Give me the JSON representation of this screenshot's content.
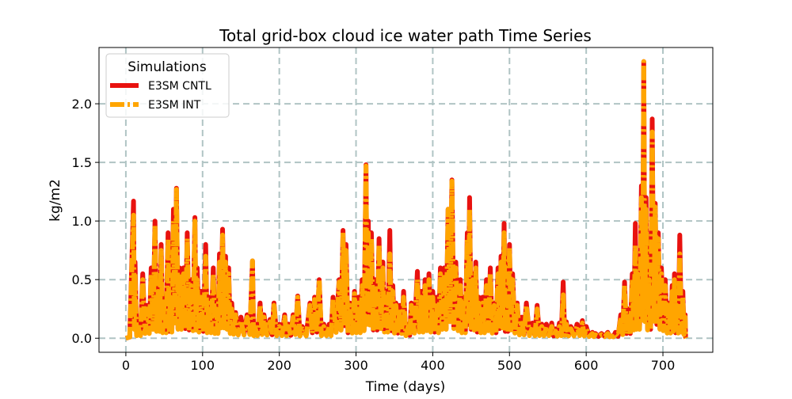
{
  "chart_data": {
    "type": "line",
    "title": "Total grid-box cloud ice water path Time Series",
    "xlabel": "Time (days)",
    "ylabel": "kg/m2",
    "xlim": [
      -35,
      765
    ],
    "ylim": [
      -0.12,
      2.48
    ],
    "x_ticks": [
      0,
      100,
      200,
      300,
      400,
      500,
      600,
      700
    ],
    "y_ticks": [
      0.0,
      0.5,
      1.0,
      1.5,
      2.0
    ],
    "x_tick_labels": [
      "0",
      "100",
      "200",
      "300",
      "400",
      "500",
      "600",
      "700"
    ],
    "y_tick_labels": [
      "0.0",
      "0.5",
      "1.0",
      "1.5",
      "2.0"
    ],
    "grid": true,
    "legend": {
      "title": "Simulations",
      "placement": "top-left"
    },
    "series": [
      {
        "name": "E3SM CNTL",
        "color": "#e8120f",
        "linestyle": "solid",
        "peaks": [
          [
            0,
            0.0
          ],
          [
            10,
            1.17
          ],
          [
            12,
            0.65
          ],
          [
            16,
            0.12
          ],
          [
            22,
            0.55
          ],
          [
            28,
            0.28
          ],
          [
            33,
            0.6
          ],
          [
            38,
            1.0
          ],
          [
            42,
            0.45
          ],
          [
            46,
            0.8
          ],
          [
            50,
            0.35
          ],
          [
            55,
            0.9
          ],
          [
            58,
            0.4
          ],
          [
            62,
            1.1
          ],
          [
            66,
            1.28
          ],
          [
            70,
            0.6
          ],
          [
            75,
            0.6
          ],
          [
            80,
            0.9
          ],
          [
            85,
            0.5
          ],
          [
            90,
            1.03
          ],
          [
            93,
            0.6
          ],
          [
            98,
            0.4
          ],
          [
            104,
            0.8
          ],
          [
            108,
            0.35
          ],
          [
            114,
            0.6
          ],
          [
            118,
            0.3
          ],
          [
            122,
            0.72
          ],
          [
            126,
            0.93
          ],
          [
            130,
            0.7
          ],
          [
            134,
            0.6
          ],
          [
            138,
            0.3
          ],
          [
            143,
            0.22
          ],
          [
            150,
            0.18
          ],
          [
            158,
            0.2
          ],
          [
            165,
            0.66
          ],
          [
            168,
            0.12
          ],
          [
            175,
            0.3
          ],
          [
            180,
            0.2
          ],
          [
            188,
            0.16
          ],
          [
            193,
            0.3
          ],
          [
            200,
            0.12
          ],
          [
            207,
            0.2
          ],
          [
            212,
            0.12
          ],
          [
            218,
            0.2
          ],
          [
            224,
            0.36
          ],
          [
            230,
            0.1
          ],
          [
            240,
            0.3
          ],
          [
            246,
            0.35
          ],
          [
            252,
            0.5
          ],
          [
            258,
            0.12
          ],
          [
            265,
            0.12
          ],
          [
            270,
            0.35
          ],
          [
            278,
            0.5
          ],
          [
            283,
            0.92
          ],
          [
            287,
            0.8
          ],
          [
            292,
            0.3
          ],
          [
            298,
            0.4
          ],
          [
            303,
            0.35
          ],
          [
            308,
            0.5
          ],
          [
            313,
            1.48
          ],
          [
            316,
            1.0
          ],
          [
            320,
            0.9
          ],
          [
            325,
            0.5
          ],
          [
            330,
            0.85
          ],
          [
            335,
            0.65
          ],
          [
            339,
            0.4
          ],
          [
            344,
            0.92
          ],
          [
            348,
            0.45
          ],
          [
            352,
            0.3
          ],
          [
            357,
            0.28
          ],
          [
            362,
            0.4
          ],
          [
            368,
            0.12
          ],
          [
            372,
            0.3
          ],
          [
            380,
            0.57
          ],
          [
            385,
            0.4
          ],
          [
            390,
            0.5
          ],
          [
            395,
            0.55
          ],
          [
            400,
            0.4
          ],
          [
            405,
            0.35
          ],
          [
            410,
            0.6
          ],
          [
            415,
            0.6
          ],
          [
            420,
            1.1
          ],
          [
            425,
            1.35
          ],
          [
            430,
            0.65
          ],
          [
            436,
            0.5
          ],
          [
            440,
            0.35
          ],
          [
            445,
            0.9
          ],
          [
            448,
            1.2
          ],
          [
            452,
            0.55
          ],
          [
            456,
            0.65
          ],
          [
            460,
            0.35
          ],
          [
            465,
            0.35
          ],
          [
            470,
            0.5
          ],
          [
            475,
            0.6
          ],
          [
            480,
            0.3
          ],
          [
            485,
            0.6
          ],
          [
            489,
            0.7
          ],
          [
            493,
            0.98
          ],
          [
            496,
            0.4
          ],
          [
            500,
            0.8
          ],
          [
            504,
            0.55
          ],
          [
            510,
            0.3
          ],
          [
            516,
            0.18
          ],
          [
            522,
            0.3
          ],
          [
            530,
            0.13
          ],
          [
            536,
            0.28
          ],
          [
            542,
            0.12
          ],
          [
            548,
            0.12
          ],
          [
            555,
            0.13
          ],
          [
            560,
            0.08
          ],
          [
            565,
            0.13
          ],
          [
            570,
            0.48
          ],
          [
            574,
            0.14
          ],
          [
            580,
            0.1
          ],
          [
            588,
            0.12
          ],
          [
            595,
            0.15
          ],
          [
            600,
            0.1
          ],
          [
            608,
            0.05
          ],
          [
            612,
            0.04
          ],
          [
            620,
            0.04
          ],
          [
            628,
            0.05
          ],
          [
            633,
            0.02
          ],
          [
            638,
            0.05
          ],
          [
            645,
            0.2
          ],
          [
            650,
            0.48
          ],
          [
            655,
            0.25
          ],
          [
            660,
            0.55
          ],
          [
            664,
            0.98
          ],
          [
            667,
            0.6
          ],
          [
            672,
            1.3
          ],
          [
            675,
            2.36
          ],
          [
            678,
            1.2
          ],
          [
            682,
            0.55
          ],
          [
            686,
            1.87
          ],
          [
            690,
            1.15
          ],
          [
            694,
            0.9
          ],
          [
            698,
            0.6
          ],
          [
            703,
            0.5
          ],
          [
            708,
            0.3
          ],
          [
            712,
            0.45
          ],
          [
            715,
            0.55
          ],
          [
            718,
            0.3
          ],
          [
            722,
            0.88
          ],
          [
            726,
            0.4
          ],
          [
            729,
            0.2
          ],
          [
            730,
            0.0
          ]
        ]
      },
      {
        "name": "E3SM INT",
        "color": "#ffa500",
        "linestyle": "dashdot",
        "peaks": [
          [
            0,
            0.0
          ],
          [
            10,
            1.05
          ],
          [
            12,
            0.55
          ],
          [
            16,
            0.1
          ],
          [
            22,
            0.5
          ],
          [
            28,
            0.25
          ],
          [
            33,
            0.55
          ],
          [
            38,
            0.97
          ],
          [
            42,
            0.4
          ],
          [
            46,
            0.75
          ],
          [
            50,
            0.3
          ],
          [
            55,
            0.85
          ],
          [
            58,
            0.35
          ],
          [
            62,
            1.0
          ],
          [
            66,
            1.27
          ],
          [
            70,
            0.55
          ],
          [
            75,
            0.55
          ],
          [
            80,
            0.85
          ],
          [
            85,
            0.45
          ],
          [
            90,
            1.0
          ],
          [
            93,
            0.5
          ],
          [
            98,
            0.35
          ],
          [
            104,
            0.7
          ],
          [
            108,
            0.3
          ],
          [
            114,
            0.55
          ],
          [
            118,
            0.25
          ],
          [
            122,
            0.65
          ],
          [
            126,
            0.88
          ],
          [
            130,
            0.65
          ],
          [
            134,
            0.55
          ],
          [
            138,
            0.25
          ],
          [
            143,
            0.2
          ],
          [
            150,
            0.15
          ],
          [
            158,
            0.18
          ],
          [
            165,
            0.66
          ],
          [
            168,
            0.1
          ],
          [
            175,
            0.28
          ],
          [
            180,
            0.18
          ],
          [
            188,
            0.14
          ],
          [
            193,
            0.28
          ],
          [
            200,
            0.1
          ],
          [
            207,
            0.18
          ],
          [
            212,
            0.1
          ],
          [
            218,
            0.18
          ],
          [
            224,
            0.35
          ],
          [
            230,
            0.08
          ],
          [
            240,
            0.28
          ],
          [
            246,
            0.33
          ],
          [
            252,
            0.5
          ],
          [
            258,
            0.1
          ],
          [
            265,
            0.1
          ],
          [
            270,
            0.33
          ],
          [
            278,
            0.48
          ],
          [
            283,
            0.9
          ],
          [
            287,
            0.75
          ],
          [
            292,
            0.28
          ],
          [
            298,
            0.38
          ],
          [
            303,
            0.3
          ],
          [
            308,
            0.45
          ],
          [
            313,
            1.47
          ],
          [
            316,
            0.9
          ],
          [
            320,
            0.85
          ],
          [
            325,
            0.45
          ],
          [
            330,
            0.8
          ],
          [
            335,
            0.6
          ],
          [
            339,
            0.35
          ],
          [
            344,
            0.72
          ],
          [
            348,
            0.4
          ],
          [
            352,
            0.28
          ],
          [
            357,
            0.25
          ],
          [
            362,
            0.35
          ],
          [
            368,
            0.1
          ],
          [
            372,
            0.28
          ],
          [
            380,
            0.5
          ],
          [
            385,
            0.35
          ],
          [
            390,
            0.45
          ],
          [
            395,
            0.5
          ],
          [
            400,
            0.35
          ],
          [
            405,
            0.3
          ],
          [
            410,
            0.55
          ],
          [
            415,
            0.55
          ],
          [
            420,
            1.1
          ],
          [
            425,
            1.34
          ],
          [
            430,
            0.6
          ],
          [
            436,
            0.45
          ],
          [
            440,
            0.3
          ],
          [
            445,
            0.85
          ],
          [
            448,
            1.1
          ],
          [
            452,
            0.5
          ],
          [
            456,
            0.6
          ],
          [
            460,
            0.3
          ],
          [
            465,
            0.3
          ],
          [
            470,
            0.45
          ],
          [
            475,
            0.55
          ],
          [
            480,
            0.28
          ],
          [
            485,
            0.55
          ],
          [
            489,
            0.65
          ],
          [
            493,
            0.9
          ],
          [
            496,
            0.35
          ],
          [
            500,
            0.78
          ],
          [
            504,
            0.5
          ],
          [
            510,
            0.28
          ],
          [
            516,
            0.15
          ],
          [
            522,
            0.28
          ],
          [
            530,
            0.1
          ],
          [
            536,
            0.25
          ],
          [
            542,
            0.1
          ],
          [
            548,
            0.1
          ],
          [
            555,
            0.1
          ],
          [
            560,
            0.06
          ],
          [
            565,
            0.1
          ],
          [
            570,
            0.37
          ],
          [
            574,
            0.12
          ],
          [
            580,
            0.08
          ],
          [
            588,
            0.1
          ],
          [
            595,
            0.13
          ],
          [
            600,
            0.08
          ],
          [
            608,
            0.04
          ],
          [
            612,
            0.03
          ],
          [
            620,
            0.03
          ],
          [
            628,
            0.04
          ],
          [
            633,
            0.02
          ],
          [
            638,
            0.04
          ],
          [
            645,
            0.18
          ],
          [
            650,
            0.45
          ],
          [
            655,
            0.22
          ],
          [
            660,
            0.5
          ],
          [
            664,
            0.8
          ],
          [
            667,
            0.55
          ],
          [
            672,
            1.2
          ],
          [
            675,
            2.36
          ],
          [
            678,
            1.1
          ],
          [
            682,
            0.5
          ],
          [
            686,
            1.76
          ],
          [
            690,
            1.12
          ],
          [
            694,
            0.85
          ],
          [
            698,
            0.55
          ],
          [
            703,
            0.45
          ],
          [
            708,
            0.28
          ],
          [
            712,
            0.4
          ],
          [
            715,
            0.5
          ],
          [
            718,
            0.28
          ],
          [
            722,
            0.72
          ],
          [
            726,
            0.35
          ],
          [
            729,
            0.18
          ],
          [
            730,
            0.0
          ]
        ]
      }
    ]
  }
}
